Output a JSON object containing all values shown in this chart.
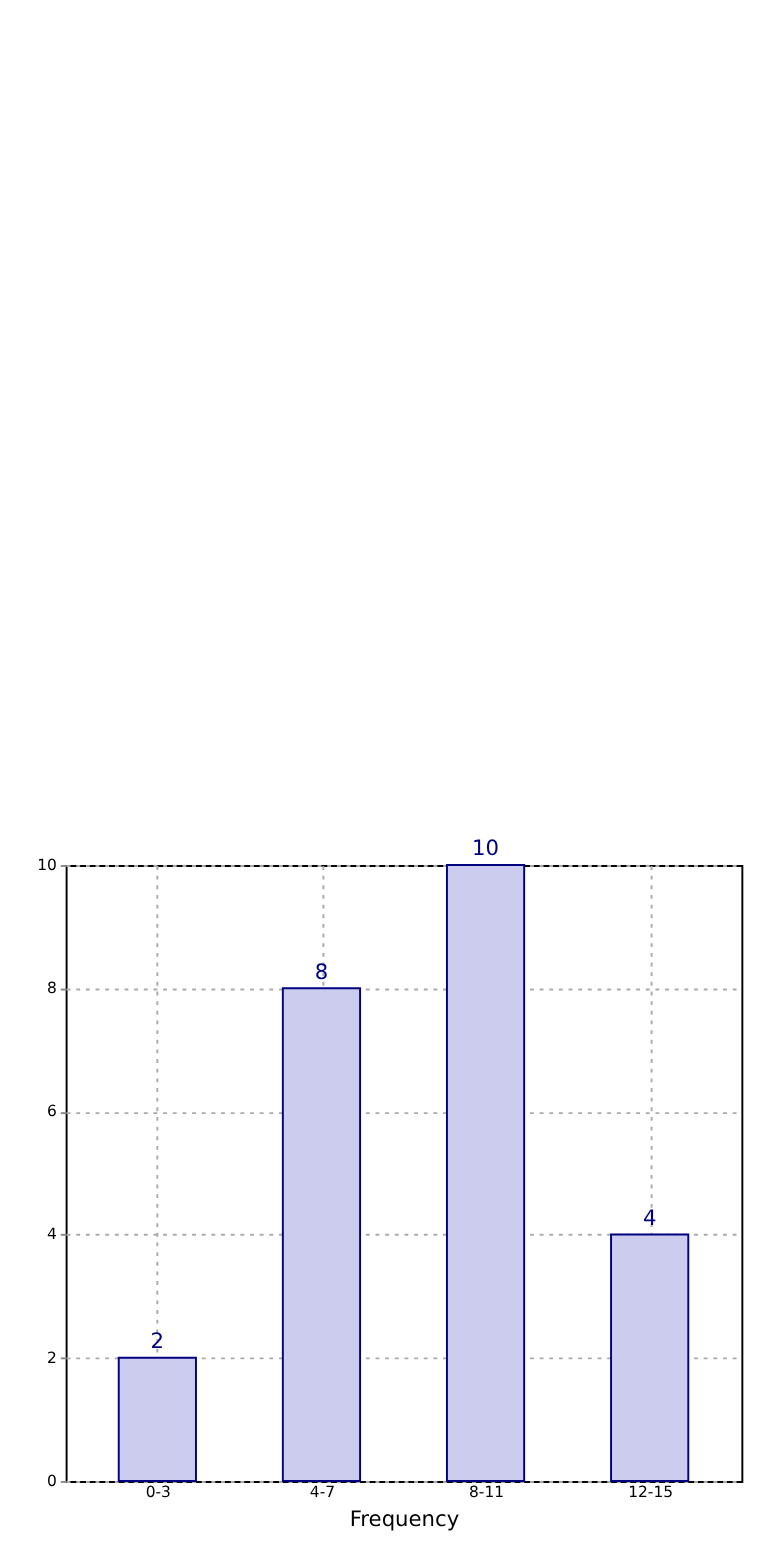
{
  "chart_data": {
    "type": "bar",
    "xlabel": "Frequency",
    "categories": [
      "0-3",
      "4-7",
      "8-11",
      "12-15"
    ],
    "series": [
      {
        "color": "#ccccee",
        "values": [
          2,
          8,
          10,
          4
        ]
      }
    ],
    "ylim": [
      0,
      10
    ],
    "yticks": [
      0,
      2,
      4,
      6,
      8,
      10
    ],
    "grid": true,
    "data_labels": true
  }
}
